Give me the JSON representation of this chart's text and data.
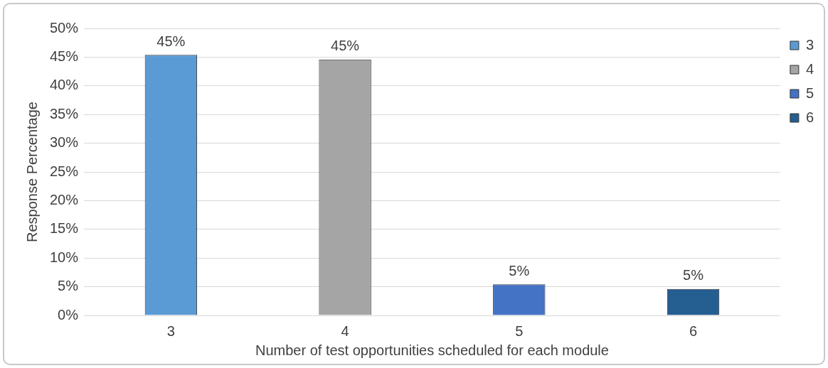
{
  "chart_data": {
    "type": "bar",
    "xlabel": "Number of test opportunities scheduled for each module",
    "ylabel": "Response Percentage",
    "categories": [
      "3",
      "4",
      "5",
      "6"
    ],
    "series": [
      {
        "name": "3",
        "color": "#5b9bd5",
        "values": [
          45.4,
          null,
          null,
          null
        ],
        "value_labels": [
          "45%",
          null,
          null,
          null
        ]
      },
      {
        "name": "4",
        "color": "#a5a5a5",
        "values": [
          null,
          44.6,
          null,
          null
        ],
        "value_labels": [
          null,
          "45%",
          null,
          null
        ]
      },
      {
        "name": "5",
        "color": "#4472c4",
        "values": [
          null,
          null,
          5.4,
          null
        ],
        "value_labels": [
          null,
          null,
          "5%",
          null
        ]
      },
      {
        "name": "6",
        "color": "#255e91",
        "values": [
          null,
          null,
          null,
          4.6
        ],
        "value_labels": [
          null,
          null,
          null,
          "5%"
        ]
      }
    ],
    "ylim": [
      0,
      50
    ],
    "yticks": [
      {
        "value": 0,
        "label": "0%"
      },
      {
        "value": 5,
        "label": "5%"
      },
      {
        "value": 10,
        "label": "10%"
      },
      {
        "value": 15,
        "label": "15%"
      },
      {
        "value": 20,
        "label": "20%"
      },
      {
        "value": 25,
        "label": "25%"
      },
      {
        "value": 30,
        "label": "30%"
      },
      {
        "value": 35,
        "label": "35%"
      },
      {
        "value": 40,
        "label": "40%"
      },
      {
        "value": 45,
        "label": "45%"
      },
      {
        "value": 50,
        "label": "50%"
      }
    ],
    "grid": "y",
    "legend": "right"
  }
}
